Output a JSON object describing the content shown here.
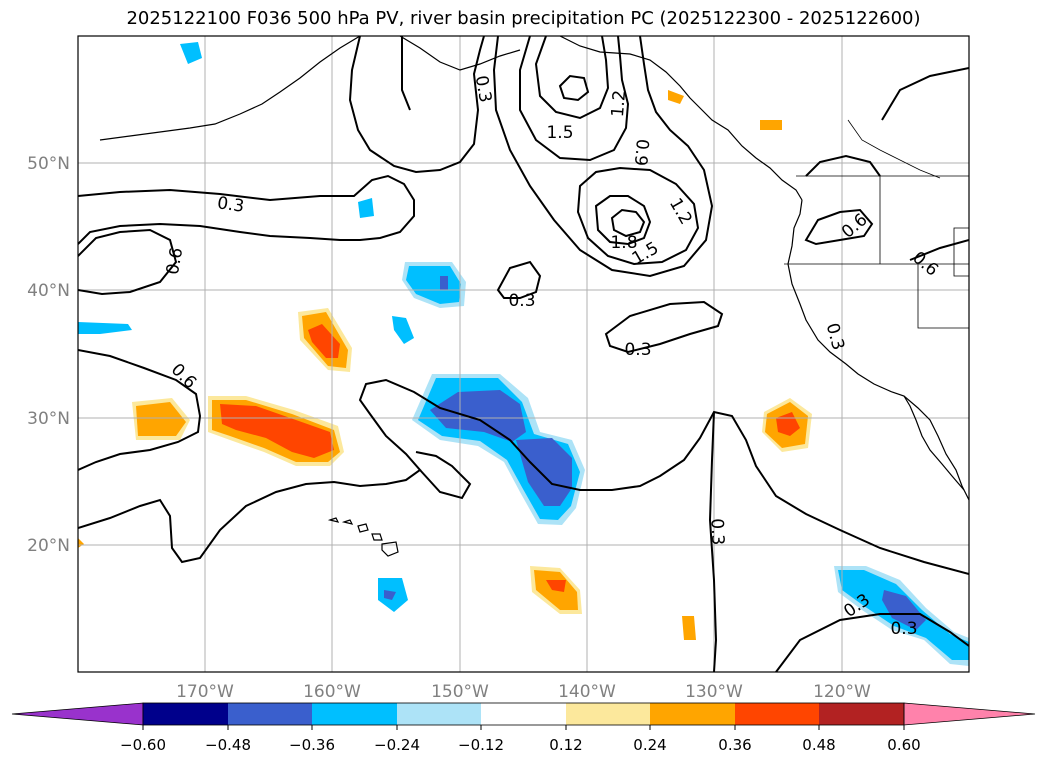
{
  "title": "2025122100 F036 500 hPa PV, river basin precipitation PC (2025122300 - 2025122600)",
  "map": {
    "projection": "plate-carree",
    "lon_range": [
      -180,
      -110
    ],
    "lat_range": [
      10,
      60
    ],
    "lat_ticks": [
      "20°N",
      "30°N",
      "40°N",
      "50°N"
    ],
    "lon_ticks": [
      "170°W",
      "160°W",
      "150°W",
      "140°W",
      "130°W",
      "120°W"
    ],
    "grid": true
  },
  "pv_contours": {
    "color": "#000000",
    "labels": [
      "0.3",
      "0.6",
      "0.3",
      "1.5",
      "1.2",
      "0.9",
      "1.2",
      "1.8",
      "1.5",
      "0.3",
      "0.3",
      "0.6",
      "0.6",
      "0.3",
      "0.3",
      "0.6",
      "0.3",
      "0.3"
    ]
  },
  "precip_pc": {
    "levels": [
      -0.6,
      -0.48,
      -0.36,
      -0.24,
      -0.12,
      0.12,
      0.24,
      0.36,
      0.48,
      0.6
    ],
    "colors": {
      "below_min": "#9932CC",
      "neg_060_048": "#00008B",
      "neg_048_036": "#3A5FCD",
      "neg_036_024": "#00BFFF",
      "neg_024_012": "#ADE3F7",
      "neutral": "#FFFFFF",
      "pos_012_024": "#FCE89C",
      "pos_024_036": "#FFA500",
      "pos_036_048": "#FF4500",
      "pos_048_060": "#B22222",
      "above_max": "#FF82AB"
    }
  },
  "colorbar": {
    "tick_labels": [
      "−0.60",
      "−0.48",
      "−0.36",
      "−0.24",
      "−0.12",
      "0.12",
      "0.24",
      "0.36",
      "0.48",
      "0.60"
    ],
    "extend": "both"
  }
}
